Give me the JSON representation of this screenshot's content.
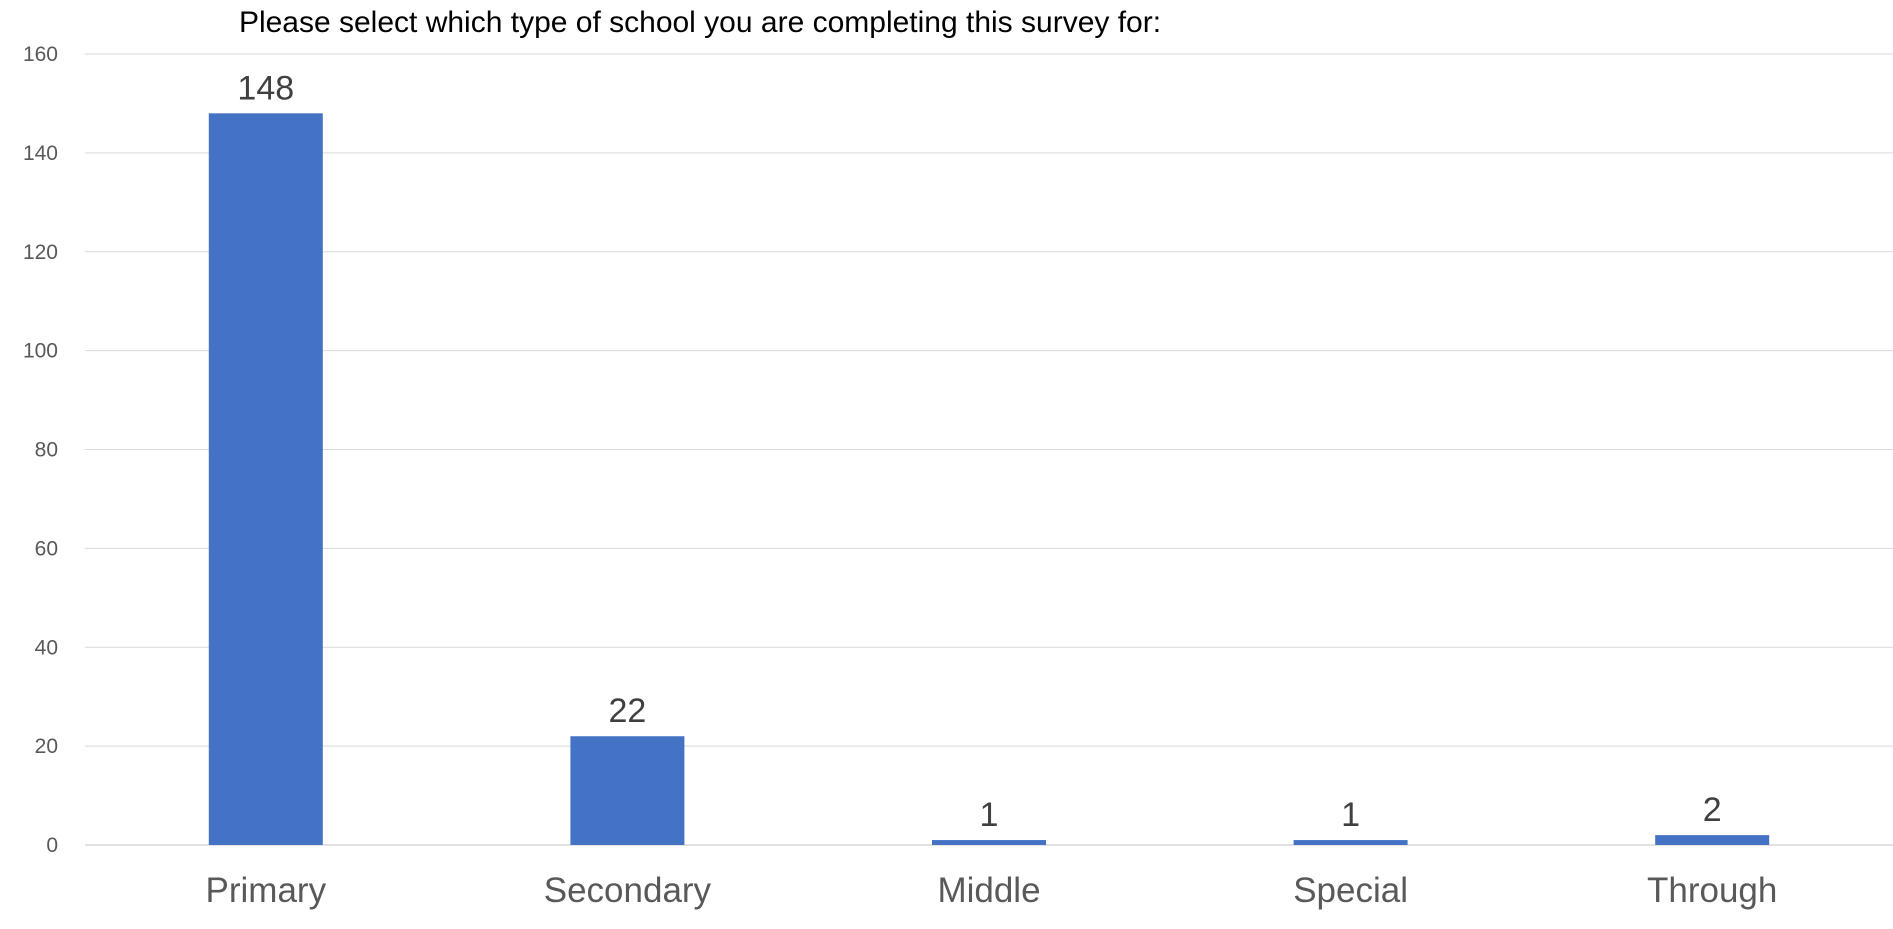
{
  "chart_data": {
    "type": "bar",
    "title": "Please select which type of school you are completing this survey for:",
    "xlabel": "",
    "ylabel": "",
    "categories": [
      "Primary",
      "Secondary",
      "Middle",
      "Special",
      "Through"
    ],
    "values": [
      148,
      22,
      1,
      1,
      2
    ],
    "ylim": [
      0,
      160
    ],
    "yticks": [
      0,
      20,
      40,
      60,
      80,
      100,
      120,
      140,
      160
    ],
    "data_labels": [
      "148",
      "22",
      "1",
      "1",
      "2"
    ],
    "grid": true,
    "legend": "none",
    "colors": {
      "bar": "#4472C4",
      "grid": "#D9D9D9",
      "axis": "#D9D9D9",
      "tick_text": "#595959",
      "label_text": "#404040",
      "title_text": "#000000"
    }
  }
}
